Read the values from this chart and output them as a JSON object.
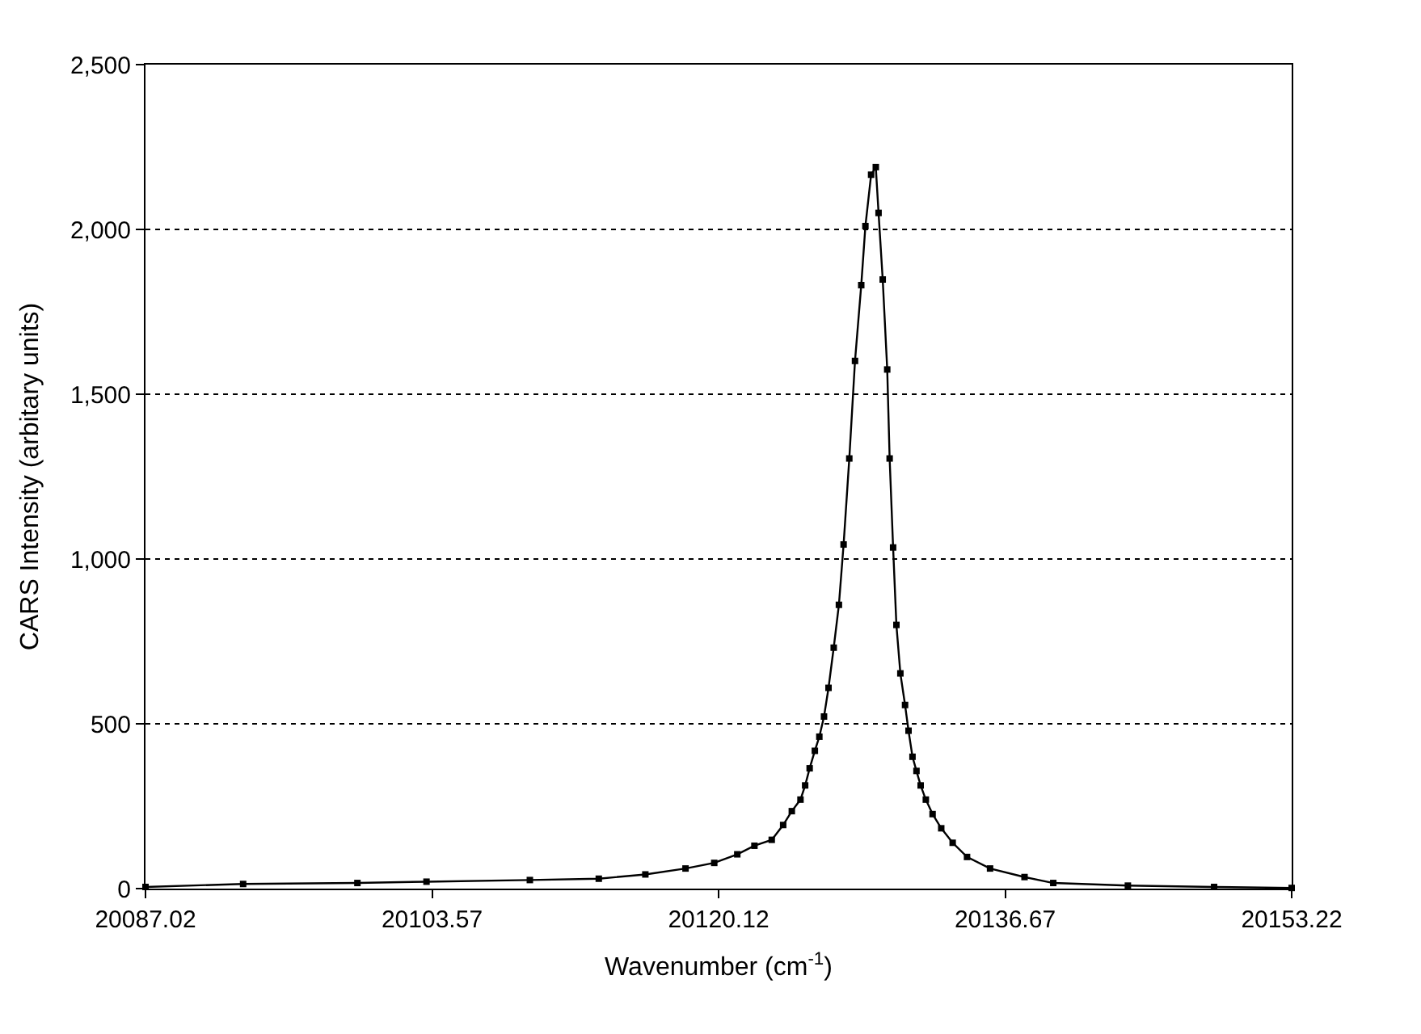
{
  "chart_data": {
    "type": "line",
    "xlabel": "Wavenumber (cm$^{-1}$)",
    "ylabel": "CARS Intensity (arbitary units)",
    "x": [
      20087.02,
      20092.66,
      20099.26,
      20103.25,
      20109.22,
      20113.2,
      20115.89,
      20118.21,
      20119.87,
      20121.2,
      20122.19,
      20123.19,
      20123.85,
      20124.35,
      20124.85,
      20125.12,
      20125.38,
      20125.68,
      20125.94,
      20126.21,
      20126.47,
      20126.77,
      20127.07,
      20127.34,
      20127.67,
      20128.0,
      20128.36,
      20128.6,
      20128.93,
      20129.2,
      20129.36,
      20129.6,
      20129.86,
      20130.0,
      20130.2,
      20130.39,
      20130.62,
      20130.89,
      20131.09,
      20131.32,
      20131.55,
      20131.79,
      20132.09,
      20132.48,
      20132.98,
      20133.64,
      20134.47,
      20135.8,
      20137.79,
      20139.45,
      20143.76,
      20148.74,
      20153.22
    ],
    "series": [
      {
        "color": "#000000",
        "values": [
          5,
          14,
          17,
          21,
          26,
          30,
          43,
          61,
          78,
          104,
          130,
          148,
          193,
          235,
          270,
          313,
          365,
          418,
          461,
          522,
          609,
          731,
          861,
          1044,
          1305,
          1601,
          1831,
          2010,
          2166,
          2189,
          2050,
          1848,
          1575,
          1305,
          1035,
          800,
          653,
          557,
          479,
          400,
          357,
          313,
          270,
          226,
          183,
          139,
          96,
          61,
          35,
          17,
          9,
          5,
          2
        ]
      }
    ],
    "xlim": [
      20087.02,
      20153.22
    ],
    "xticks": [
      20087.02,
      20103.57,
      20120.12,
      20136.67,
      20153.22
    ],
    "ylim": [
      0,
      2500
    ],
    "yticks": [
      0,
      {
        "value": 500,
        "label": "500"
      },
      {
        "value": 1000,
        "label": "1,000"
      },
      {
        "value": 1500,
        "label": "1,500"
      },
      {
        "value": 2000,
        "label": "2,000"
      },
      {
        "value": 2500,
        "label": "2,500"
      }
    ],
    "grid": "y",
    "marker": "square",
    "line_style": "solid"
  }
}
